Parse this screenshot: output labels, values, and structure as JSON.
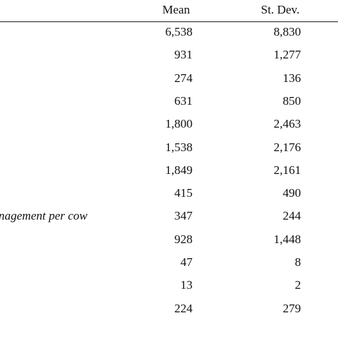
{
  "table": {
    "header": [
      "Mean",
      "St. Dev."
    ],
    "rows": [
      {
        "mean": "6,538",
        "sd": "8,830"
      },
      {
        "mean": "931",
        "sd": "1,277"
      },
      {
        "mean": "274",
        "sd": "136"
      },
      {
        "mean": "631",
        "sd": "850"
      },
      {
        "mean": "1,800",
        "sd": "2,463"
      },
      {
        "mean": "1,538",
        "sd": "2,176"
      },
      {
        "mean": "1,849",
        "sd": "2,161"
      },
      {
        "mean": "415",
        "sd": "490"
      },
      {
        "label": "nagement per cow",
        "mean": "347",
        "sd": "244"
      },
      {
        "mean": "928",
        "sd": "1,448"
      },
      {
        "mean": "47",
        "sd": "8"
      },
      {
        "mean": "13",
        "sd": "2"
      },
      {
        "mean": "224",
        "sd": "279"
      }
    ]
  }
}
